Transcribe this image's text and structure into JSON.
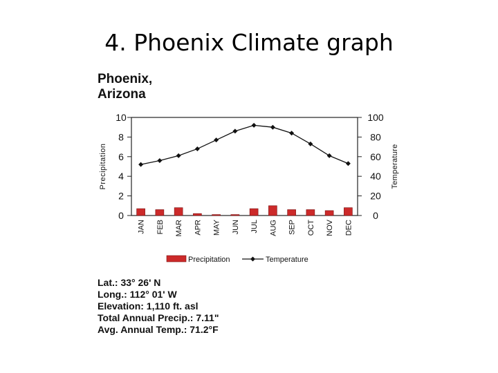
{
  "slide_title": "4. Phoenix Climate graph",
  "place": {
    "line1": "Phoenix,",
    "line2": "Arizona"
  },
  "chart_data": {
    "type": "bar+line",
    "categories": [
      "JAN",
      "FEB",
      "MAR",
      "APR",
      "MAY",
      "JUN",
      "JUL",
      "AUG",
      "SEP",
      "OCT",
      "NOV",
      "DEC"
    ],
    "series": [
      {
        "name": "Precipitation",
        "type": "bar",
        "axis": "left",
        "values": [
          0.7,
          0.6,
          0.8,
          0.2,
          0.1,
          0.1,
          0.7,
          1.0,
          0.6,
          0.6,
          0.5,
          0.8
        ],
        "color": "#cc2a2a"
      },
      {
        "name": "Temperature",
        "type": "line",
        "axis": "right",
        "values": [
          52,
          56,
          61,
          68,
          77,
          86,
          92,
          90,
          84,
          73,
          61,
          53
        ],
        "color": "#111111"
      }
    ],
    "ylabel": "Precipitation",
    "ylabel_right": "Temperature",
    "ylim": [
      0,
      10
    ],
    "ylim_right": [
      0,
      100
    ],
    "yticks": [
      "0",
      "2",
      "4",
      "6",
      "8",
      "10"
    ],
    "yticks_right": [
      "0",
      "20",
      "40",
      "60",
      "80",
      "100"
    ],
    "legend_position": "bottom",
    "grid": false
  },
  "info": {
    "lat": "Lat.: 33° 26' N",
    "long": "Long.: 112° 01' W",
    "elevation": "Elevation: 1,110 ft. asl",
    "precip": "Total Annual Precip.: 7.11\"",
    "temp": "Avg. Annual Temp.: 71.2°F"
  }
}
